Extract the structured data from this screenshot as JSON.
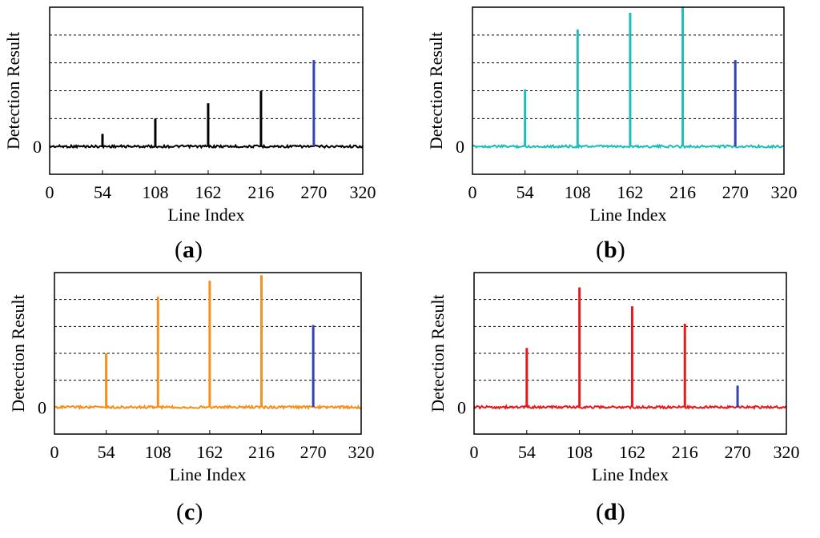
{
  "charts": [
    {
      "label": "a",
      "chart_data": {
        "type": "line",
        "xlabel": "Line Index",
        "ylabel": "Detection Result",
        "xlim": [
          0,
          320
        ],
        "xticks": [
          0,
          54,
          108,
          162,
          216,
          270,
          320
        ],
        "ylim": [
          -1,
          5
        ],
        "yticks": [
          0
        ],
        "gridlines_y": [
          1,
          2,
          3,
          4
        ],
        "grid": "horizontal dashed",
        "baseline": 0,
        "series": [
          {
            "color": "#000000",
            "spikes": [
              {
                "x": 54,
                "y": 0.45
              },
              {
                "x": 108,
                "y": 1.0
              },
              {
                "x": 162,
                "y": 1.55
              },
              {
                "x": 216,
                "y": 2.0
              }
            ]
          },
          {
            "color": "#3342b8",
            "spikes": [
              {
                "x": 270,
                "y": 3.1
              }
            ]
          }
        ]
      }
    },
    {
      "label": "b",
      "chart_data": {
        "type": "line",
        "xlabel": "Line Index",
        "ylabel": "Detection Result",
        "xlim": [
          0,
          320
        ],
        "xticks": [
          0,
          54,
          108,
          162,
          216,
          270,
          320
        ],
        "ylim": [
          -1,
          5
        ],
        "yticks": [
          0
        ],
        "gridlines_y": [
          1,
          2,
          3,
          4
        ],
        "grid": "horizontal dashed",
        "baseline": 0,
        "series": [
          {
            "color": "#1fbcbc",
            "spikes": [
              {
                "x": 54,
                "y": 2.05
              },
              {
                "x": 108,
                "y": 4.2
              },
              {
                "x": 162,
                "y": 4.8
              },
              {
                "x": 216,
                "y": 5.0
              }
            ]
          },
          {
            "color": "#3342b8",
            "spikes": [
              {
                "x": 270,
                "y": 3.1
              }
            ]
          }
        ]
      }
    },
    {
      "label": "c",
      "chart_data": {
        "type": "line",
        "xlabel": "Line Index",
        "ylabel": "Detection Result",
        "xlim": [
          0,
          320
        ],
        "xticks": [
          0,
          54,
          108,
          162,
          216,
          270,
          320
        ],
        "ylim": [
          -1,
          5
        ],
        "yticks": [
          0
        ],
        "gridlines_y": [
          1,
          2,
          3,
          4
        ],
        "grid": "horizontal dashed",
        "baseline": 0,
        "series": [
          {
            "color": "#f5901e",
            "spikes": [
              {
                "x": 54,
                "y": 2.0
              },
              {
                "x": 108,
                "y": 4.1
              },
              {
                "x": 162,
                "y": 4.7
              },
              {
                "x": 216,
                "y": 4.9
              }
            ]
          },
          {
            "color": "#3342b8",
            "spikes": [
              {
                "x": 270,
                "y": 3.05
              }
            ]
          }
        ]
      }
    },
    {
      "label": "d",
      "chart_data": {
        "type": "line",
        "xlabel": "Line Index",
        "ylabel": "Detection Result",
        "xlim": [
          0,
          320
        ],
        "xticks": [
          0,
          54,
          108,
          162,
          216,
          270,
          320
        ],
        "ylim": [
          -1,
          5
        ],
        "yticks": [
          0
        ],
        "gridlines_y": [
          1,
          2,
          3,
          4
        ],
        "grid": "horizontal dashed",
        "baseline": 0,
        "series": [
          {
            "color": "#e51b1b",
            "spikes": [
              {
                "x": 54,
                "y": 2.2
              },
              {
                "x": 108,
                "y": 4.45
              },
              {
                "x": 162,
                "y": 3.75
              },
              {
                "x": 216,
                "y": 3.1
              }
            ]
          },
          {
            "color": "#3342b8",
            "spikes": [
              {
                "x": 270,
                "y": 0.8
              }
            ]
          }
        ]
      }
    }
  ]
}
